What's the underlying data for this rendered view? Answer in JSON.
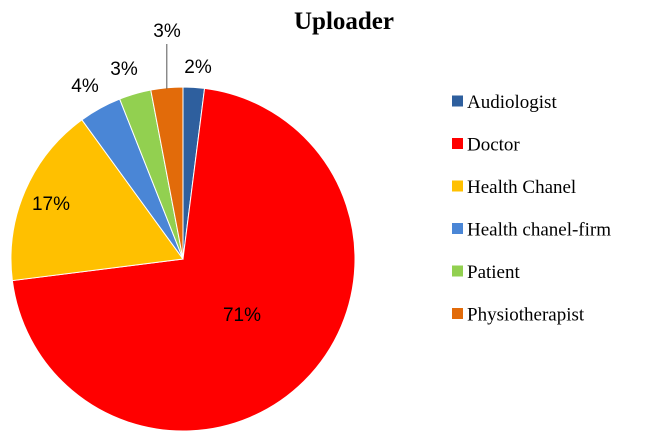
{
  "chart_data": {
    "type": "pie",
    "title": "Uploader",
    "legend_position": "right",
    "slices": [
      {
        "label": "Audiologist",
        "value": 2,
        "data_label": "2%",
        "color": "#2e5f9e"
      },
      {
        "label": "Doctor",
        "value": 71,
        "data_label": "71%",
        "color": "#ff0000"
      },
      {
        "label": "Health Chanel",
        "value": 17,
        "data_label": "17%",
        "color": "#ffc000"
      },
      {
        "label": "Health chanel-firm",
        "value": 4,
        "data_label": "4%",
        "color": "#4a86d6"
      },
      {
        "label": "Patient",
        "value": 3,
        "data_label": "3%",
        "color": "#92d050"
      },
      {
        "label": "Physiotherapist",
        "value": 3,
        "data_label": "3%",
        "color": "#e26b0a"
      }
    ]
  }
}
